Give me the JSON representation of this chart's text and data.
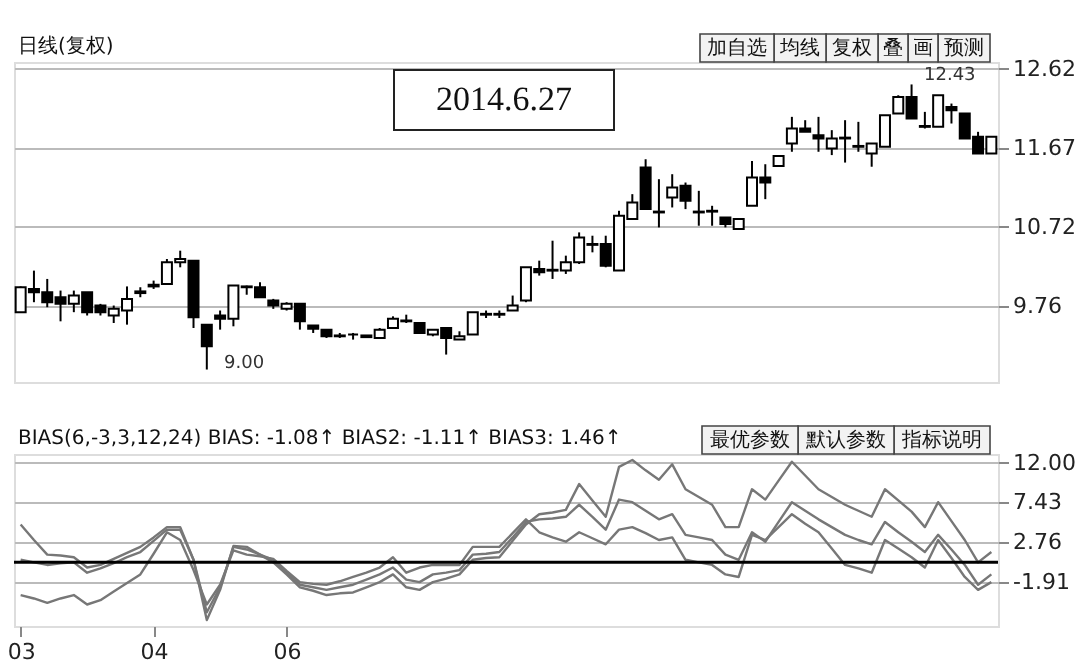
{
  "chart_data": [
    {
      "type": "candlestick",
      "categories": [
        null,
        null,
        null,
        null,
        null,
        null,
        null,
        null,
        null,
        null,
        null,
        null,
        null,
        null,
        null,
        null,
        null,
        null,
        null,
        null,
        null,
        null,
        null,
        null,
        null,
        null,
        null,
        null,
        null,
        null,
        null,
        null,
        null,
        null,
        null,
        null,
        null,
        null,
        null,
        null,
        null,
        null,
        null,
        null,
        null,
        null,
        null,
        null,
        null,
        null,
        null,
        null,
        null,
        null,
        null,
        null,
        null,
        null,
        null,
        null,
        null,
        null,
        null,
        null,
        null,
        null,
        null,
        null,
        null,
        null,
        null,
        null,
        null,
        null
      ],
      "ohlc": [
        [
          9.69,
          10.0,
          9.68,
          9.99
        ],
        [
          9.97,
          10.19,
          9.81,
          9.93
        ],
        [
          9.93,
          10.09,
          9.75,
          9.81
        ],
        [
          9.87,
          9.95,
          9.58,
          9.79
        ],
        [
          9.79,
          9.95,
          9.69,
          9.89
        ],
        [
          9.93,
          9.93,
          9.65,
          9.69
        ],
        [
          9.77,
          9.79,
          9.65,
          9.69
        ],
        [
          9.65,
          9.77,
          9.56,
          9.73
        ],
        [
          9.71,
          10.0,
          9.54,
          9.85
        ],
        [
          9.92,
          9.99,
          9.87,
          9.94
        ],
        [
          10.0,
          10.07,
          9.97,
          10.02
        ],
        [
          10.03,
          10.33,
          10.03,
          10.29
        ],
        [
          10.29,
          10.43,
          10.23,
          10.33
        ],
        [
          10.31,
          10.31,
          9.5,
          9.63
        ],
        [
          9.54,
          9.54,
          9.0,
          9.28
        ],
        [
          9.65,
          9.71,
          9.48,
          9.61
        ],
        [
          9.61,
          10.01,
          9.52,
          10.01
        ],
        [
          9.99,
          10.01,
          9.9,
          10.0
        ],
        [
          9.99,
          10.05,
          9.87,
          9.87
        ],
        [
          9.83,
          9.85,
          9.73,
          9.77
        ],
        [
          9.73,
          9.81,
          9.71,
          9.79
        ],
        [
          9.79,
          9.79,
          9.48,
          9.58
        ],
        [
          9.53,
          9.53,
          9.44,
          9.49
        ],
        [
          9.48,
          9.48,
          9.38,
          9.4
        ],
        [
          9.4,
          9.44,
          9.38,
          9.41
        ],
        [
          9.42,
          9.44,
          9.36,
          9.42
        ],
        [
          9.41,
          9.41,
          9.38,
          9.39
        ],
        [
          9.38,
          9.5,
          9.38,
          9.48
        ],
        [
          9.5,
          9.64,
          9.5,
          9.61
        ],
        [
          9.59,
          9.66,
          9.56,
          9.58
        ],
        [
          9.56,
          9.56,
          9.44,
          9.44
        ],
        [
          9.42,
          9.48,
          9.4,
          9.48
        ],
        [
          9.5,
          9.5,
          9.18,
          9.38
        ],
        [
          9.36,
          9.46,
          9.36,
          9.4
        ],
        [
          9.42,
          9.69,
          9.42,
          9.69
        ],
        [
          9.66,
          9.71,
          9.62,
          9.67
        ],
        [
          9.66,
          9.71,
          9.62,
          9.67
        ],
        [
          9.71,
          9.89,
          9.71,
          9.77
        ],
        [
          9.83,
          10.23,
          9.81,
          10.23
        ],
        [
          10.21,
          10.31,
          10.13,
          10.17
        ],
        [
          10.19,
          10.55,
          10.09,
          10.2
        ],
        [
          10.19,
          10.37,
          10.15,
          10.29
        ],
        [
          10.29,
          10.65,
          10.27,
          10.59
        ],
        [
          10.5,
          10.61,
          10.41,
          10.51
        ],
        [
          10.51,
          10.61,
          10.23,
          10.25
        ],
        [
          10.19,
          10.91,
          10.19,
          10.85
        ],
        [
          10.81,
          11.11,
          10.81,
          11.01
        ],
        [
          11.43,
          11.53,
          10.93,
          10.93
        ],
        [
          10.9,
          11.29,
          10.71,
          10.89
        ],
        [
          11.07,
          11.35,
          10.95,
          11.19
        ],
        [
          11.21,
          11.25,
          10.93,
          11.03
        ],
        [
          10.9,
          11.15,
          10.73,
          10.89
        ],
        [
          10.9,
          10.97,
          10.73,
          10.91
        ],
        [
          10.83,
          10.83,
          10.71,
          10.75
        ],
        [
          10.69,
          10.81,
          10.69,
          10.81
        ],
        [
          10.97,
          11.51,
          10.97,
          11.31
        ],
        [
          11.31,
          11.47,
          11.05,
          11.25
        ],
        [
          11.45,
          11.57,
          11.45,
          11.57
        ],
        [
          11.72,
          12.04,
          11.62,
          11.9
        ],
        [
          11.9,
          12.0,
          11.86,
          11.86
        ],
        [
          11.82,
          12.04,
          11.62,
          11.78
        ],
        [
          11.66,
          11.88,
          11.58,
          11.78
        ],
        [
          11.79,
          12.0,
          11.49,
          11.78
        ],
        [
          11.68,
          11.98,
          11.62,
          11.69
        ],
        [
          11.6,
          11.72,
          11.44,
          11.72
        ],
        [
          11.68,
          12.06,
          11.68,
          12.06
        ],
        [
          12.08,
          12.3,
          12.08,
          12.28
        ],
        [
          12.28,
          12.43,
          12.02,
          12.02
        ],
        [
          11.92,
          12.1,
          11.9,
          11.93
        ],
        [
          11.92,
          12.3,
          11.92,
          12.3
        ],
        [
          12.16,
          12.2,
          11.96,
          12.12
        ],
        [
          12.08,
          12.08,
          11.78,
          11.78
        ],
        [
          11.8,
          11.86,
          11.6,
          11.6
        ],
        [
          11.6,
          11.8,
          11.6,
          11.8
        ]
      ],
      "ylim": [
        8.85,
        12.7
      ],
      "yticks": [
        12.62,
        11.67,
        10.72,
        9.76
      ],
      "grid": "y",
      "tick_labels": "y",
      "annotations": [
        "日线(复权)",
        "加自选",
        "均线",
        "复权",
        "叠",
        "画",
        "预测",
        "2014.6.27",
        "12.43",
        "9.00"
      ]
    },
    {
      "type": "line",
      "marker": "none",
      "line_style": "solid",
      "grid": "y",
      "categories": [
        "03",
        null,
        null,
        null,
        null,
        null,
        null,
        null,
        null,
        null,
        "04",
        null,
        null,
        null,
        null,
        null,
        null,
        null,
        null,
        null,
        "06",
        null,
        null,
        null,
        null,
        null,
        null,
        null,
        null,
        null,
        null,
        null,
        null,
        null,
        null,
        null,
        null,
        null,
        null,
        null,
        null,
        null,
        null,
        null,
        null,
        null,
        null,
        null,
        null,
        null,
        null,
        null,
        null,
        null,
        null,
        null,
        null,
        null,
        null,
        null,
        null,
        null,
        null,
        null,
        null,
        null,
        null,
        null,
        null,
        null,
        null,
        null,
        null,
        null
      ],
      "series": [
        {
          "color": "#777777",
          "values": [
            4.8,
            3.0,
            1.3,
            1.2,
            1.0,
            -0.2,
            0.1,
            0.8,
            1.5,
            2.2,
            3.3,
            4.5,
            4.5,
            0.7,
            -6.3,
            -2.8,
            2.3,
            2.2,
            1.3,
            0.4,
            -1.0,
            -2.5,
            -2.9,
            -3.4,
            -3.2,
            -3.1,
            -2.5,
            -1.9,
            -1.0,
            -2.5,
            -2.8,
            -1.9,
            -1.5,
            -1.0,
            0.7,
            0.9,
            1.0,
            2.9,
            4.8,
            6.0,
            6.2,
            6.5,
            9.5,
            7.6,
            5.7,
            11.5,
            12.3,
            11.1,
            10.0,
            11.8,
            8.9,
            8.0,
            7.1,
            4.5,
            4.5,
            8.9,
            7.7,
            9.9,
            12.1,
            10.5,
            8.9,
            8.0,
            7.1,
            6.4,
            5.7,
            8.9,
            7.6,
            6.3,
            4.5,
            7.4,
            5.2,
            3.0,
            0.4,
            1.6
          ]
        },
        {
          "color": "#777777",
          "values": [
            0.7,
            0.4,
            0.1,
            0.3,
            0.4,
            -0.8,
            -0.3,
            0.3,
            1.0,
            1.6,
            2.9,
            4.2,
            4.2,
            0.7,
            -5.4,
            -2.5,
            2.2,
            1.9,
            1.3,
            0.7,
            -0.8,
            -2.2,
            -2.5,
            -2.8,
            -2.5,
            -2.2,
            -1.6,
            -1.0,
            -0.2,
            -1.6,
            -1.9,
            -1.0,
            -0.8,
            -0.5,
            1.3,
            1.4,
            1.6,
            3.3,
            5.1,
            5.4,
            5.5,
            5.7,
            7.1,
            5.7,
            4.2,
            7.7,
            7.4,
            6.4,
            5.4,
            6.0,
            3.6,
            3.3,
            3.0,
            1.3,
            0.7,
            3.9,
            2.8,
            5.1,
            7.4,
            6.4,
            5.4,
            4.5,
            3.6,
            3.0,
            2.5,
            5.1,
            3.9,
            2.8,
            1.6,
            3.6,
            1.9,
            0.1,
            -2.2,
            -1.0
          ]
        },
        {
          "color": "#777777",
          "values": [
            -3.4,
            -3.8,
            -4.3,
            -3.8,
            -3.4,
            -4.5,
            -4.0,
            -3.0,
            -2.0,
            -1.0,
            1.4,
            3.9,
            3.0,
            -0.5,
            -4.5,
            -2.2,
            1.8,
            1.3,
            1.1,
            0.8,
            -0.6,
            -1.9,
            -2.1,
            -2.2,
            -1.8,
            -1.3,
            -0.8,
            -0.2,
            1.0,
            -0.8,
            -0.2,
            0.1,
            0.1,
            0.1,
            2.2,
            2.2,
            2.2,
            3.8,
            5.4,
            3.9,
            3.3,
            2.8,
            3.9,
            3.2,
            2.5,
            4.2,
            4.5,
            3.8,
            3.0,
            3.3,
            0.7,
            0.4,
            0.1,
            -1.0,
            -1.3,
            3.6,
            3.0,
            4.5,
            6.0,
            4.9,
            3.9,
            2.0,
            0.1,
            -0.3,
            -0.8,
            3.0,
            2.0,
            1.0,
            -0.2,
            3.0,
            0.9,
            -1.3,
            -2.8,
            -1.9
          ]
        }
      ],
      "ylim": [
        -7,
        13
      ],
      "yticks": [
        {
          "value": 12,
          "label": "12.00"
        },
        7.43,
        2.76,
        -1.91
      ],
      "ref_lines": [
        {
          "axis": "y",
          "value": 0.4,
          "color": "#000000"
        }
      ],
      "annotations": [
        "BIAS(6,-3,3,12,24) BIAS: -1.08↑ BIAS2: -1.11↑ BIAS3: 1.46↑",
        "最优参数",
        "默认参数",
        "指标说明"
      ]
    }
  ]
}
